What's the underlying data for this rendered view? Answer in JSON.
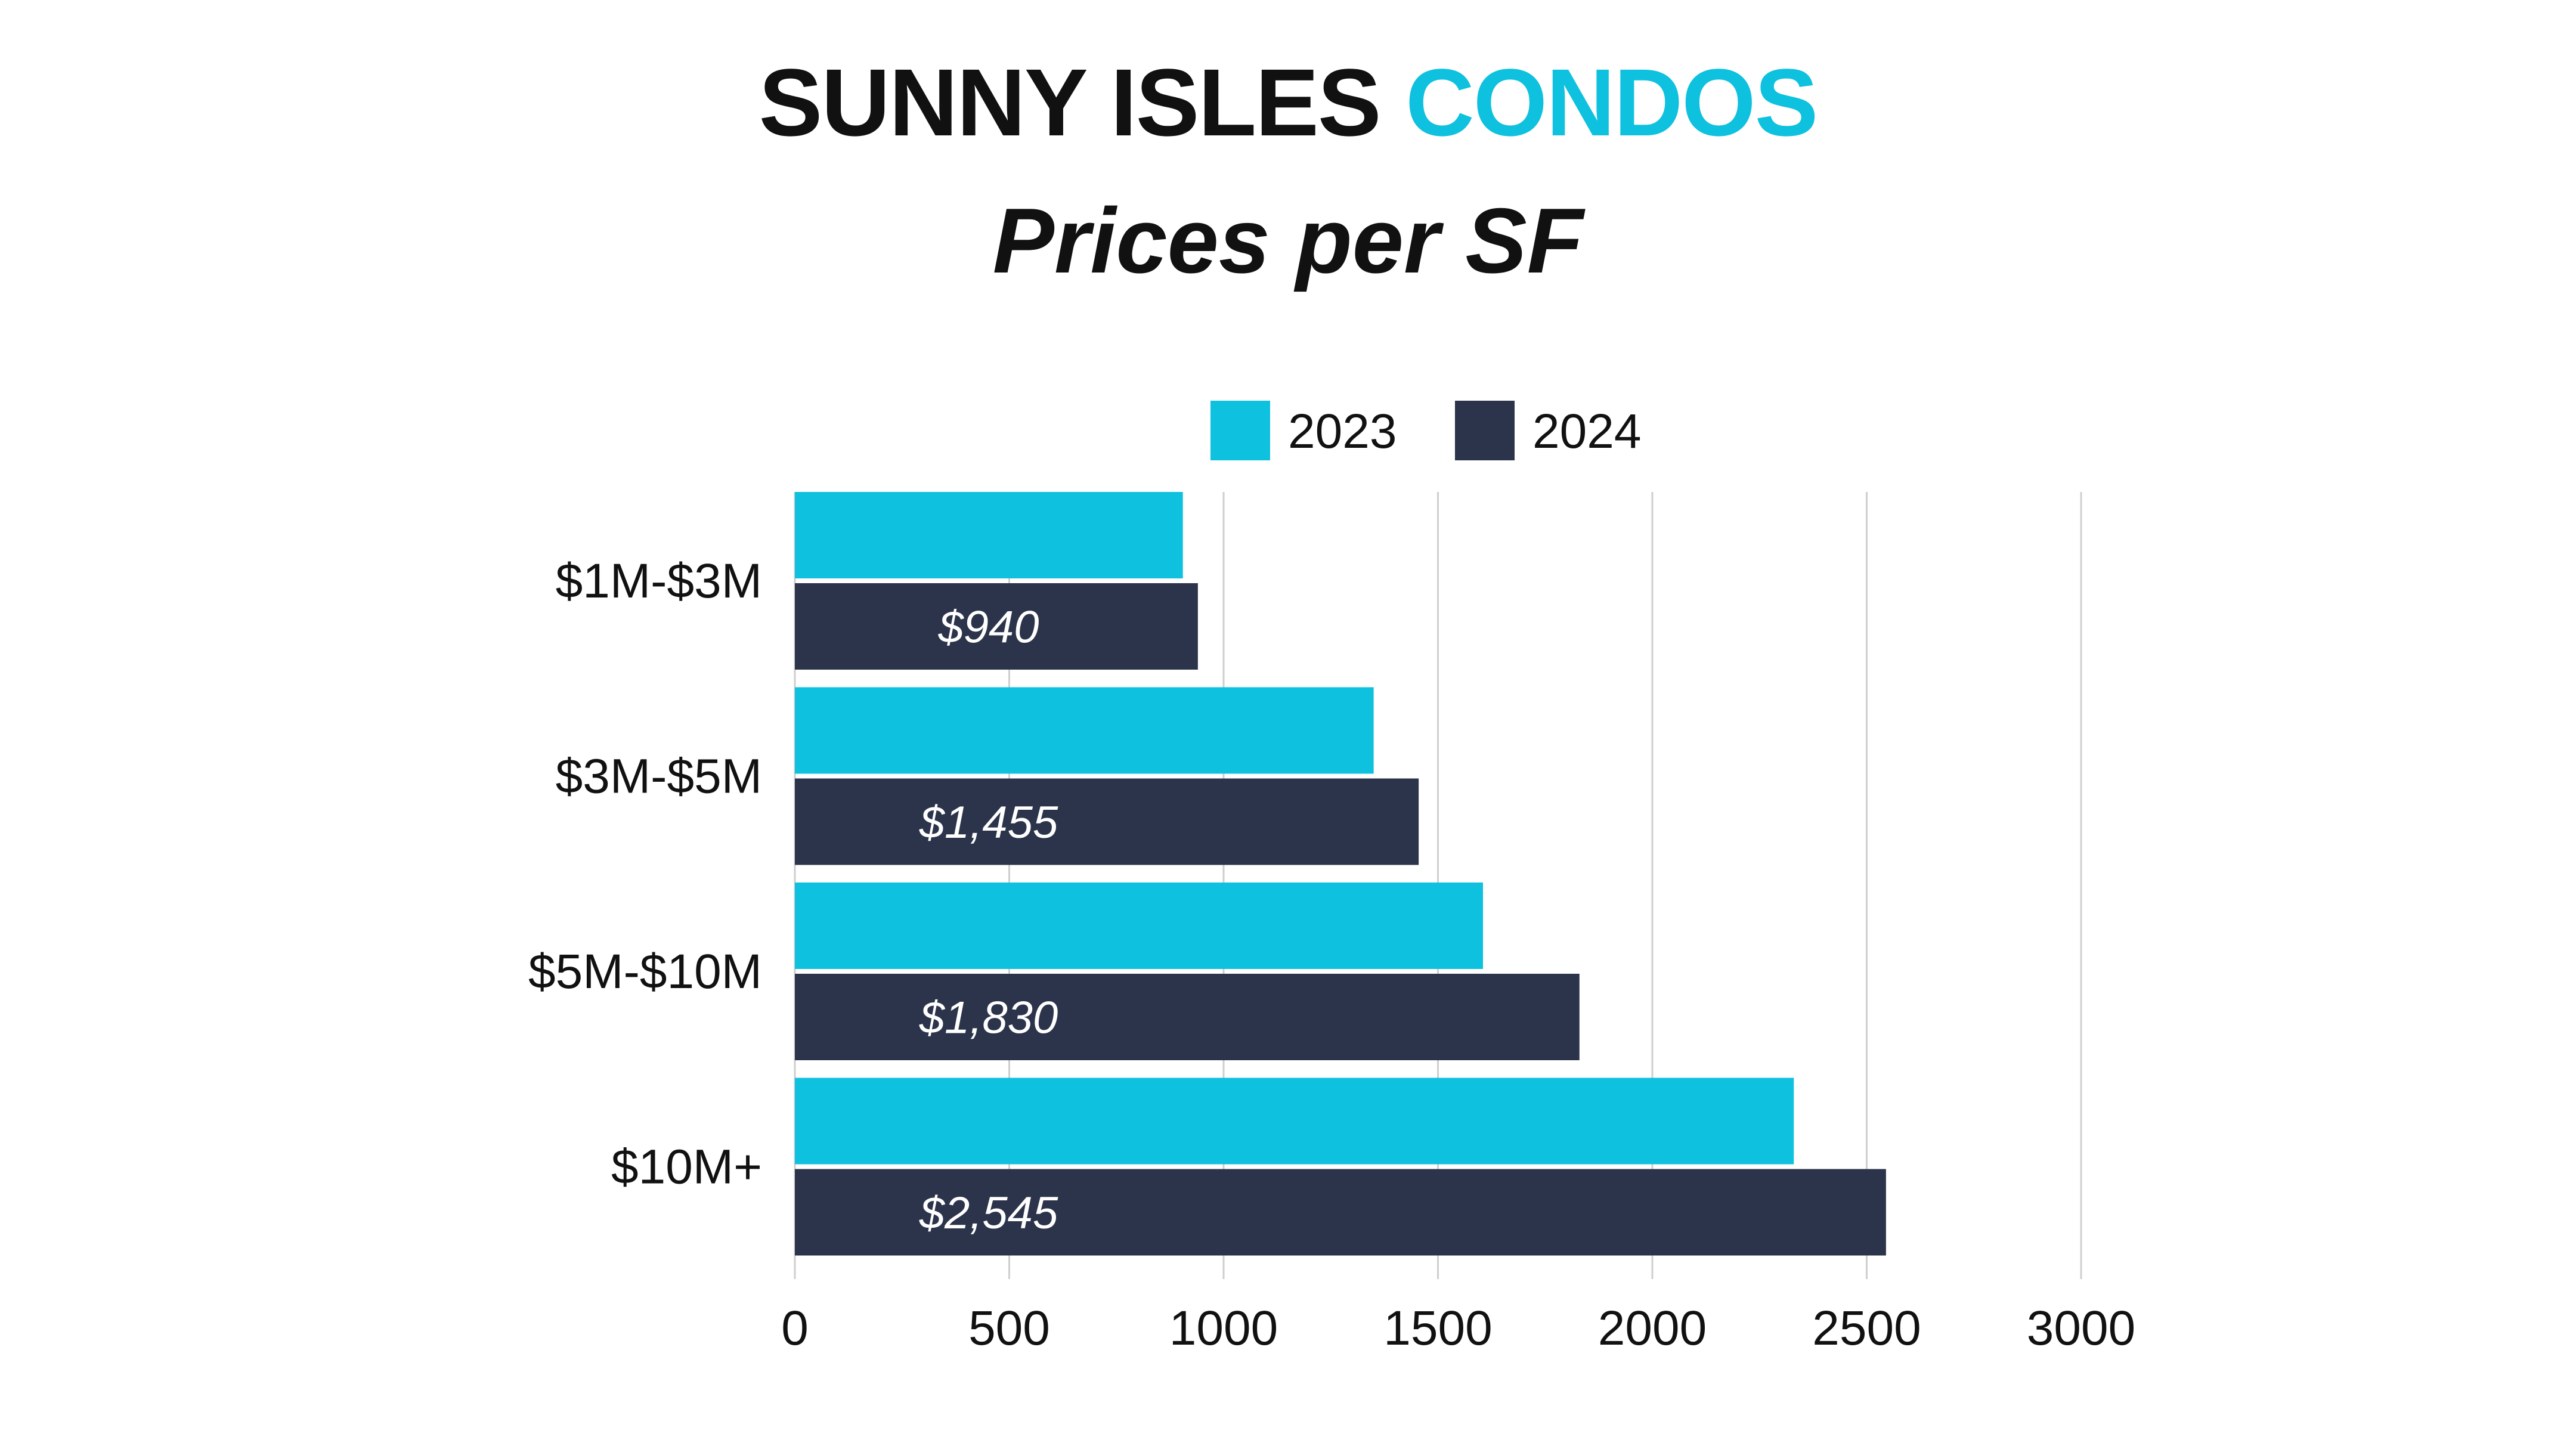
{
  "header": {
    "title_main": "SUNNY ISLES",
    "title_accent": "CONDOS",
    "subtitle": "Prices per SF"
  },
  "colors": {
    "accent": "#0ec1de",
    "dark": "#2b344a",
    "grid": "#cfcfcf",
    "text": "#111111"
  },
  "chart_data": {
    "type": "bar",
    "orientation": "horizontal",
    "categories": [
      "$1M-$3M",
      "$3M-$5M",
      "$5M-$10M",
      "$10M+"
    ],
    "series": [
      {
        "name": "2023",
        "color": "#0ec1de",
        "values": [
          905,
          1350,
          1605,
          2330
        ]
      },
      {
        "name": "2024",
        "color": "#2b344a",
        "values": [
          940,
          1455,
          1830,
          2545
        ],
        "labels": [
          "$940",
          "$1,455",
          "$1,830",
          "$2,545"
        ]
      }
    ],
    "xlim": [
      0,
      3000
    ],
    "xticks": [
      "0",
      "500",
      "1000",
      "1500",
      "2000",
      "2500",
      "3000"
    ],
    "grid": true,
    "legend": "top"
  }
}
